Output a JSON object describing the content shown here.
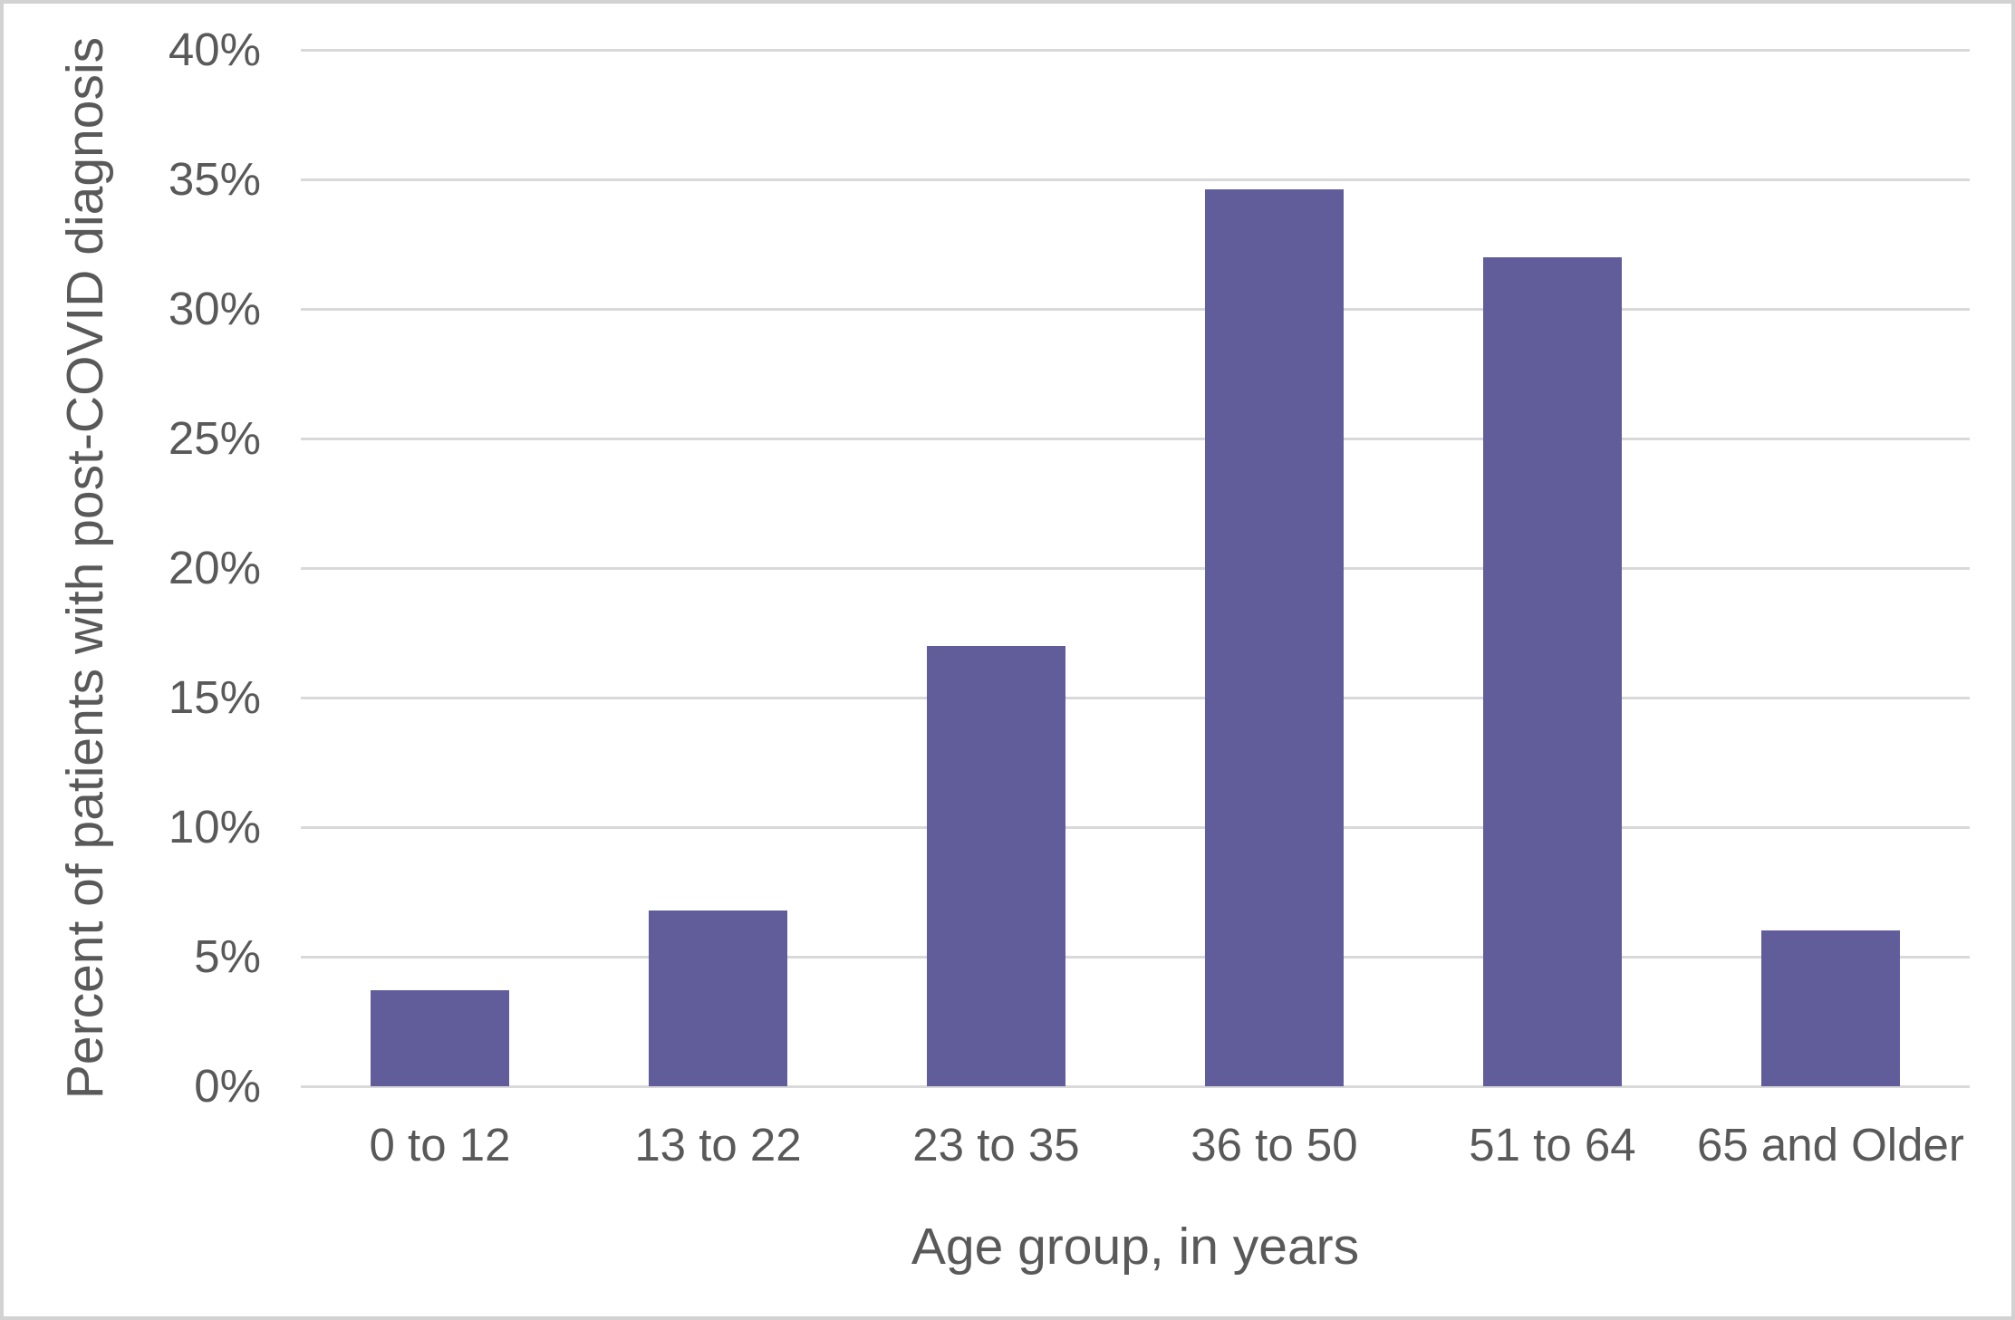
{
  "chart_data": {
    "type": "bar",
    "title": "",
    "categories": [
      "0 to 12",
      "13 to 22",
      "23 to 35",
      "36 to 50",
      "51 to 64",
      "65 and Older"
    ],
    "values": [
      3.7,
      6.8,
      17.0,
      34.6,
      32.0,
      6.0
    ],
    "xlabel": "Age group, in years",
    "ylabel": "Percent of patients with post-COVID diagnosis",
    "ylim": [
      0,
      40
    ],
    "ytick_step": 5,
    "ytick_labels": [
      "0%",
      "5%",
      "10%",
      "15%",
      "20%",
      "25%",
      "30%",
      "35%",
      "40%"
    ],
    "grid": true,
    "legend": "none",
    "bar_gap_ratio": 0.5,
    "colors": {
      "bar": "#615d9b",
      "gridline": "#d9d9d9",
      "text": "#595959",
      "background": "#ffffff",
      "frame_border": "#d2d2d2"
    }
  }
}
